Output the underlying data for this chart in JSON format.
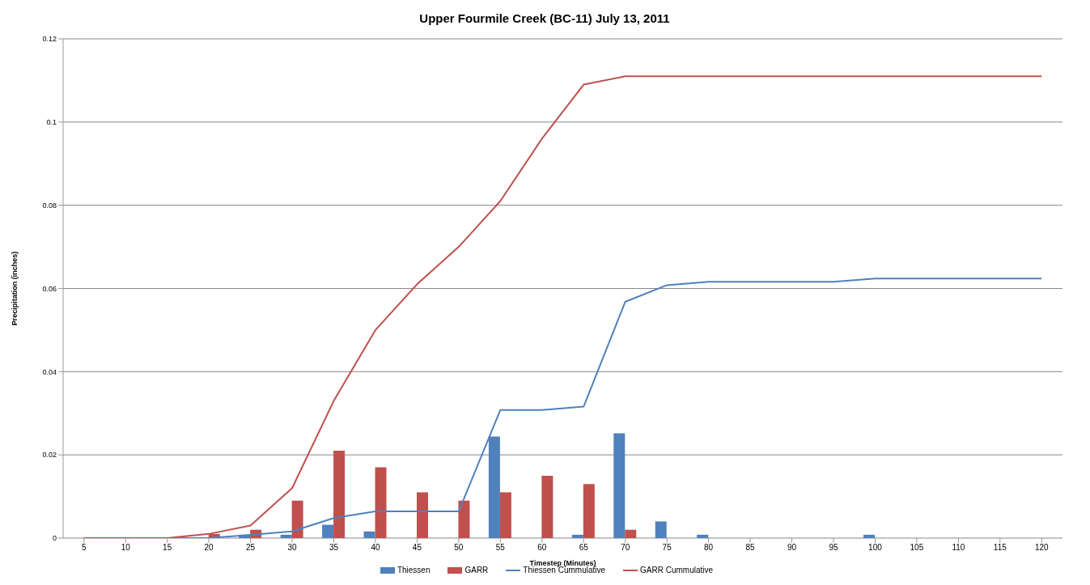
{
  "chart_data": {
    "type": "bar",
    "title": "Upper Fourmile Creek (BC-11) July 13, 2011",
    "xlabel": "Timestep (Minutes)",
    "ylabel": "Precipitation (inches)",
    "categories": [
      "5",
      "10",
      "15",
      "20",
      "25",
      "30",
      "35",
      "40",
      "45",
      "50",
      "55",
      "60",
      "65",
      "70",
      "75",
      "80",
      "85",
      "90",
      "95",
      "100",
      "105",
      "110",
      "115",
      "120"
    ],
    "series": [
      {
        "name": "Thiessen",
        "color": "#4f81bd",
        "values": [
          0,
          0,
          0,
          0,
          0.0008,
          0.0008,
          0.0032,
          0.0016,
          0,
          0,
          0.0244,
          0,
          0.0008,
          0.0252,
          0.004,
          0.0008,
          0,
          0,
          0,
          0.0008,
          0,
          0,
          0,
          0
        ]
      },
      {
        "name": "GARR",
        "color": "#c0504d",
        "values": [
          0,
          0,
          0,
          0.001,
          0.002,
          0.009,
          0.021,
          0.017,
          0.011,
          0.009,
          0.011,
          0.015,
          0.013,
          0.002,
          0,
          0,
          0,
          0,
          0,
          0,
          0,
          0,
          0,
          0
        ]
      },
      {
        "name": "Thiessen Cummulative",
        "type": "line",
        "color": "#4f81bd",
        "values": [
          0,
          0,
          0,
          0,
          0.0008,
          0.0016,
          0.0048,
          0.0064,
          0.0064,
          0.0064,
          0.0308,
          0.0308,
          0.0316,
          0.0568,
          0.0608,
          0.0616,
          0.0616,
          0.0616,
          0.0616,
          0.0624,
          0.0624,
          0.0624,
          0.0624,
          0.0624
        ]
      },
      {
        "name": "GARR Cummulative",
        "type": "line",
        "color": "#c0504d",
        "values": [
          0,
          0,
          0,
          0.001,
          0.003,
          0.012,
          0.033,
          0.05,
          0.061,
          0.07,
          0.081,
          0.096,
          0.109,
          0.111,
          0.111,
          0.111,
          0.111,
          0.111,
          0.111,
          0.111,
          0.111,
          0.111,
          0.111,
          0.111
        ]
      }
    ],
    "ylim": [
      0,
      0.12
    ],
    "yticks": [
      0,
      0.02,
      0.04,
      0.06,
      0.08,
      0.1,
      0.12
    ],
    "grid": "y",
    "legend": "bottom",
    "marker": "none"
  }
}
